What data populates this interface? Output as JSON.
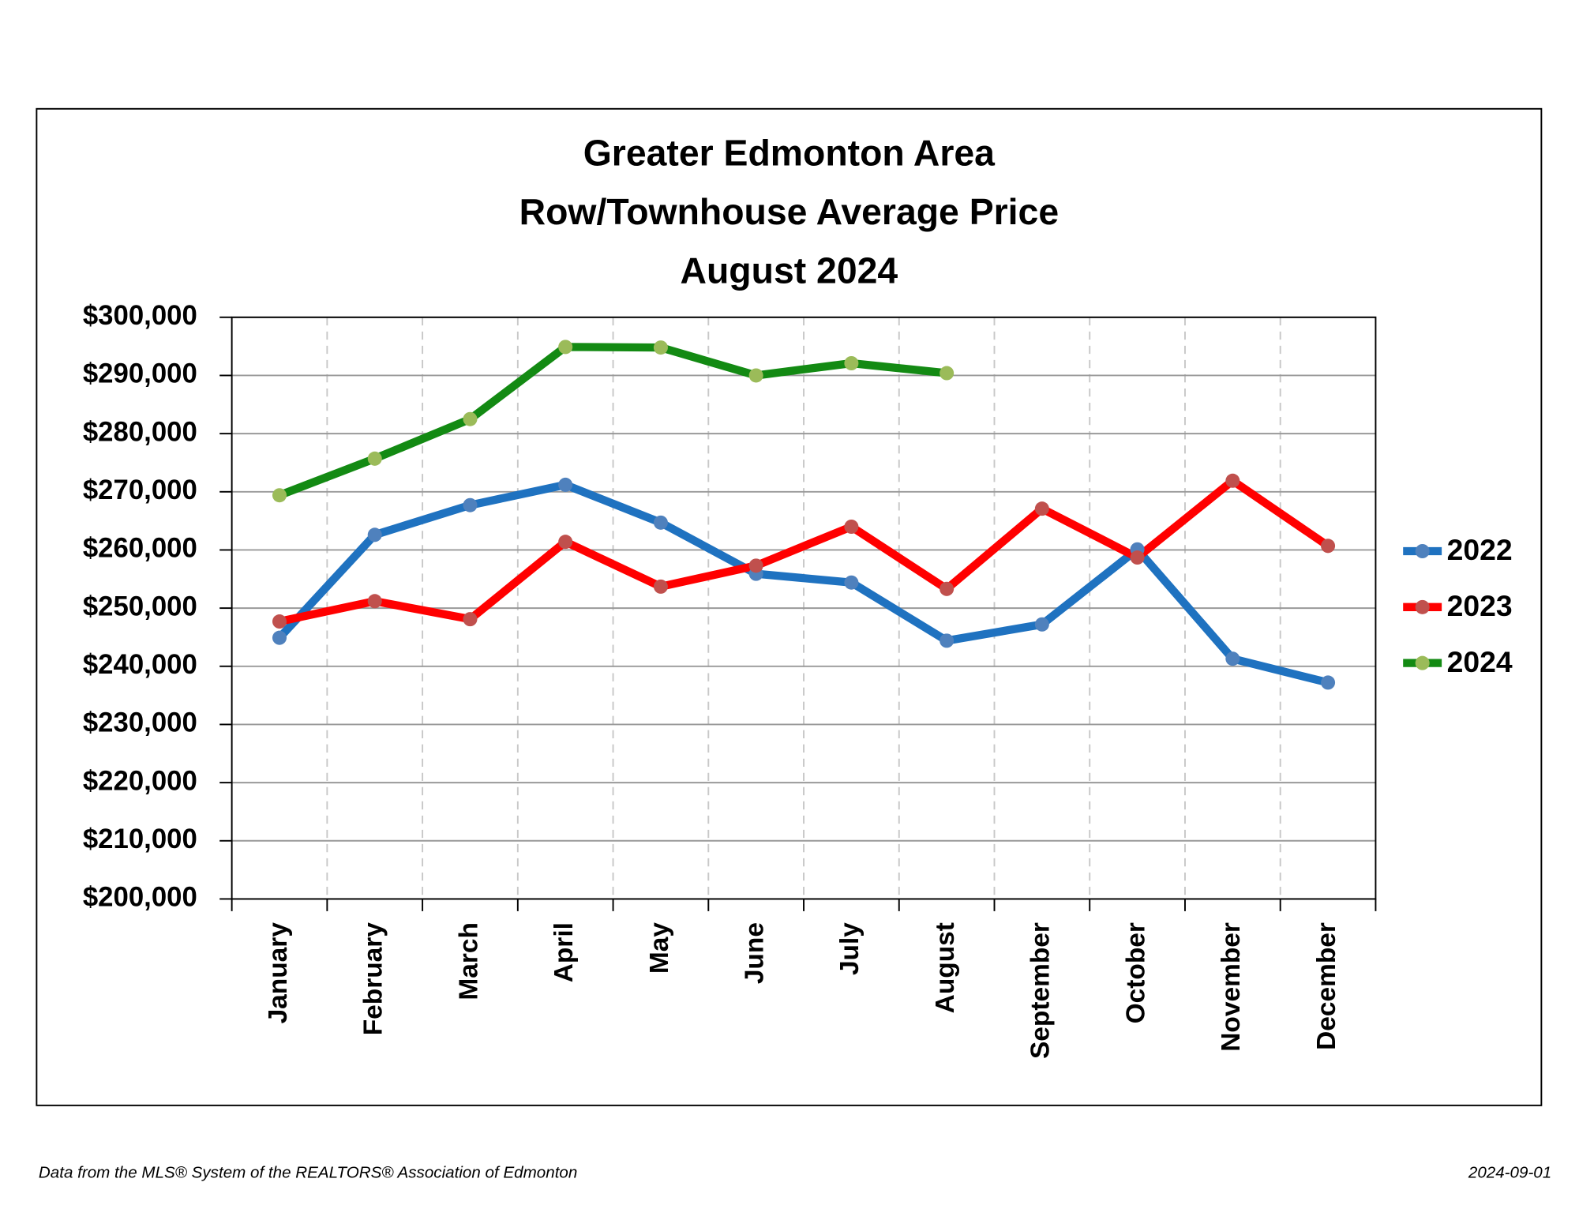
{
  "chart_data": {
    "type": "line",
    "title": [
      "Greater Edmonton Area",
      "Row/Townhouse Average Price",
      "August 2024"
    ],
    "categories": [
      "January",
      "February",
      "March",
      "April",
      "May",
      "June",
      "July",
      "August",
      "September",
      "October",
      "November",
      "December"
    ],
    "series": [
      {
        "name": "2022",
        "color": "#1f72c0",
        "marker_color": "#4f81bd",
        "values": [
          244900,
          262600,
          267700,
          271200,
          264700,
          255900,
          254400,
          244400,
          247200,
          260100,
          241300,
          237200
        ]
      },
      {
        "name": "2023",
        "color": "#ff0000",
        "marker_color": "#c0504d",
        "values": [
          247700,
          251200,
          248100,
          261400,
          253700,
          257300,
          264000,
          253300,
          267100,
          258700,
          271900,
          260700
        ]
      },
      {
        "name": "2024",
        "color": "#138a13",
        "marker_color": "#9bbb59",
        "values": [
          269400,
          275700,
          282500,
          294900,
          294800,
          290000,
          292100,
          290400,
          null,
          null,
          null,
          null
        ]
      }
    ],
    "ylim": [
      200000,
      300000
    ],
    "yticks": [
      {
        "value": 200000,
        "label": "$200,000"
      },
      {
        "value": 210000,
        "label": "$210,000"
      },
      {
        "value": 220000,
        "label": "$220,000"
      },
      {
        "value": 230000,
        "label": "$230,000"
      },
      {
        "value": 240000,
        "label": "$240,000"
      },
      {
        "value": 250000,
        "label": "$250,000"
      },
      {
        "value": 260000,
        "label": "$260,000"
      },
      {
        "value": 270000,
        "label": "$270,000"
      },
      {
        "value": 280000,
        "label": "$280,000"
      },
      {
        "value": 290000,
        "label": "$290,000"
      },
      {
        "value": 300000,
        "label": "$300,000"
      }
    ],
    "grid": true,
    "legend": "right",
    "footnote": "Data from the MLS® System of the REALTORS® Association of Edmonton",
    "date": "2024-09-01"
  }
}
